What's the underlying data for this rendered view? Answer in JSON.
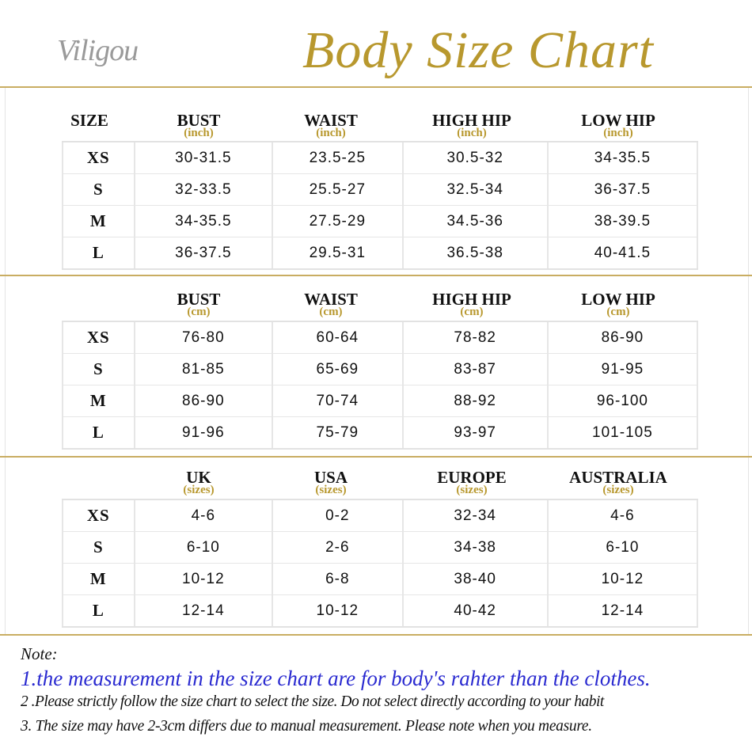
{
  "brand": "Viligou",
  "title": "Body Size Chart",
  "colors": {
    "gold": "#b8982e",
    "note_blue": "#2a2ad0",
    "line": "#c9ad62"
  },
  "sections": [
    {
      "corner": "SIZE",
      "headers": [
        {
          "label": "BUST",
          "unit": "(inch)"
        },
        {
          "label": "WAIST",
          "unit": "(inch)"
        },
        {
          "label": "HIGH HIP",
          "unit": "(inch)"
        },
        {
          "label": "LOW HIP",
          "unit": "(inch)"
        }
      ],
      "rows": [
        [
          "XS",
          "30-31.5",
          "23.5-25",
          "30.5-32",
          "34-35.5"
        ],
        [
          "S",
          "32-33.5",
          "25.5-27",
          "32.5-34",
          "36-37.5"
        ],
        [
          "M",
          "34-35.5",
          "27.5-29",
          "34.5-36",
          "38-39.5"
        ],
        [
          "L",
          "36-37.5",
          "29.5-31",
          "36.5-38",
          "40-41.5"
        ]
      ]
    },
    {
      "corner": "",
      "headers": [
        {
          "label": "BUST",
          "unit": "(cm)"
        },
        {
          "label": "WAIST",
          "unit": "(cm)"
        },
        {
          "label": "HIGH HIP",
          "unit": "(cm)"
        },
        {
          "label": "LOW HIP",
          "unit": "(cm)"
        }
      ],
      "rows": [
        [
          "XS",
          "76-80",
          "60-64",
          "78-82",
          "86-90"
        ],
        [
          "S",
          "81-85",
          "65-69",
          "83-87",
          "91-95"
        ],
        [
          "M",
          "86-90",
          "70-74",
          "88-92",
          "96-100"
        ],
        [
          "L",
          "91-96",
          "75-79",
          "93-97",
          "101-105"
        ]
      ]
    },
    {
      "corner": "",
      "headers": [
        {
          "label": "UK",
          "unit": "(sizes)"
        },
        {
          "label": "USA",
          "unit": "(sizes)"
        },
        {
          "label": "EUROPE",
          "unit": "(sizes)"
        },
        {
          "label": "AUSTRALIA",
          "unit": "(sizes)"
        }
      ],
      "rows": [
        [
          "XS",
          "4-6",
          "0-2",
          "32-34",
          "4-6"
        ],
        [
          "S",
          "6-10",
          "2-6",
          "34-38",
          "6-10"
        ],
        [
          "M",
          "10-12",
          "6-8",
          "38-40",
          "10-12"
        ],
        [
          "L",
          "12-14",
          "10-12",
          "40-42",
          "12-14"
        ]
      ]
    }
  ],
  "notes": {
    "heading": "Note:",
    "line1": "1.the measurement in the size chart are for body's rahter than the clothes.",
    "line2": "2 .Please strictly follow the size chart to select the size. Do not select directly according to your habit",
    "line3": "3. The size may have 2-3cm differs due to manual measurement. Please note when you measure."
  }
}
